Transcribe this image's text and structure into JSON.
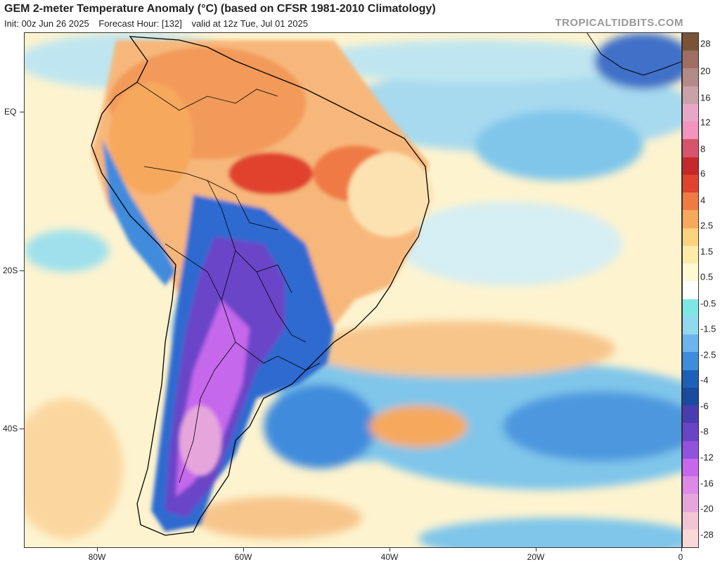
{
  "header": {
    "title": "GEM 2-meter Temperature Anomaly (°C) (based on CFSR 1981-2010 Climatology)",
    "init": "Init: 00z Jun 26 2025",
    "forecast_hour": "Forecast Hour: [132]",
    "valid": "valid at 12z Tue, Jul 01 2025",
    "brand": "TROPICALTIDBITS.COM"
  },
  "axes": {
    "lat_labels": [
      "EQ",
      "20S",
      "40S"
    ],
    "lon_labels": [
      "80W",
      "60W",
      "40W",
      "20W",
      "0"
    ]
  },
  "colorbar": {
    "labels": [
      "28",
      "20",
      "16",
      "12",
      "8",
      "6",
      "4",
      "2.5",
      "1.5",
      "0.5",
      "-0.5",
      "-1.5",
      "-2.5",
      "-4",
      "-6",
      "-8",
      "-12",
      "-16",
      "-20",
      "-28"
    ],
    "colors": [
      "#7a5238",
      "#9e6e62",
      "#b48a88",
      "#c9a2a8",
      "#e8a7c8",
      "#f294bd",
      "#d6556b",
      "#c5292c",
      "#e0432e",
      "#ef7a44",
      "#f6a95d",
      "#fbd27e",
      "#fdebaa",
      "#fdf9d3",
      "#ffffff",
      "#7fe6e6",
      "#92d8ef",
      "#6cb5ec",
      "#3f8bdc",
      "#1e5fb8",
      "#1a4a9e",
      "#4b3bb0",
      "#6a44c7",
      "#9153dd",
      "#c568ec",
      "#dd8ae6",
      "#e6a6dc",
      "#f2c5d5",
      "#fad8d8"
    ]
  },
  "map": {
    "ocean_color": "#fdf3cf",
    "land_warm_color": "#f4a160",
    "land_cold_color": "#8a52d8",
    "deep_cold_color": "#b86ae6",
    "cool_ocean_color": "#7fc6ea",
    "border_color": "#000000"
  }
}
